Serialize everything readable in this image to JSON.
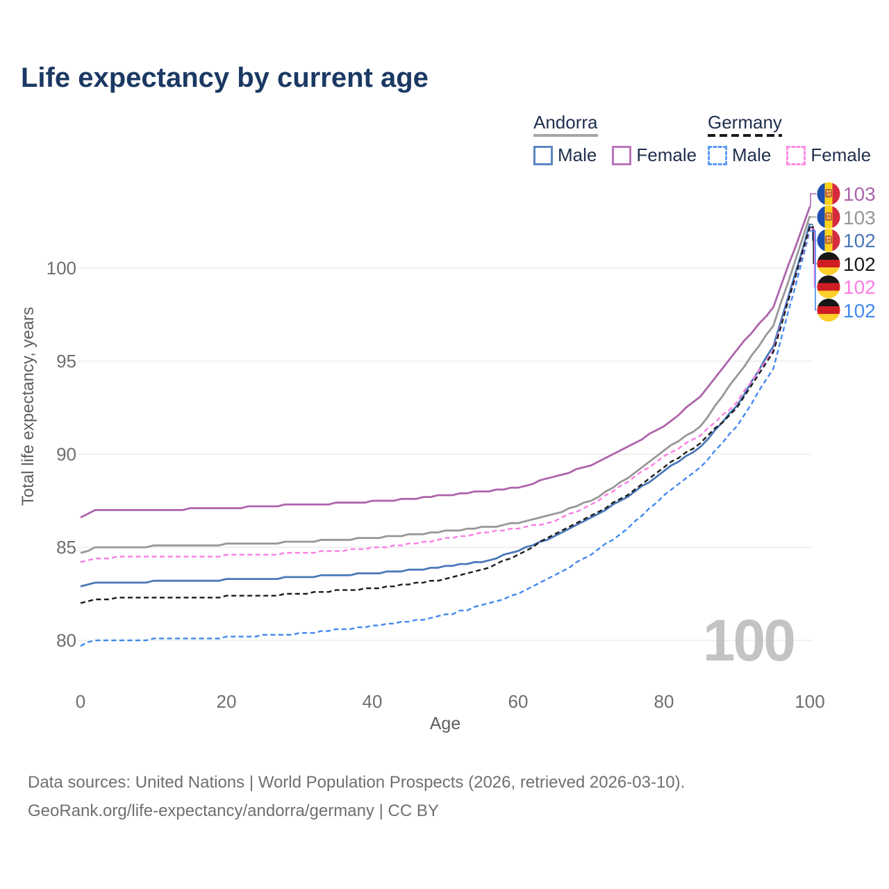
{
  "title": "Life expectancy by current age",
  "legend": {
    "groups": [
      {
        "country": "Andorra",
        "underline_style": "solid",
        "underline_color": "#a6a6a6",
        "items": [
          {
            "label": "Male",
            "color": "#5b86c4",
            "dashed": false
          },
          {
            "label": "Female",
            "color": "#bb74b8",
            "dashed": false
          }
        ]
      },
      {
        "country": "Germany",
        "underline_style": "dashed",
        "underline_color": "#1a1a1a",
        "items": [
          {
            "label": "Male",
            "color": "#5b9bf8",
            "dashed": true
          },
          {
            "label": "Female",
            "color": "#ff8ae2",
            "dashed": true
          }
        ]
      }
    ]
  },
  "chart_data": {
    "type": "line",
    "title": "Life expectancy by current age",
    "xlabel": "Age",
    "ylabel": "Total life expectancy, years",
    "x_ticks": [
      0,
      20,
      40,
      60,
      80,
      100
    ],
    "y_ticks": [
      80,
      85,
      90,
      95,
      100
    ],
    "xlim": [
      0,
      100
    ],
    "ylim": [
      78,
      104.5
    ],
    "grid": "horizontal-only",
    "ages": [
      0,
      2,
      5,
      10,
      15,
      20,
      25,
      30,
      35,
      40,
      45,
      50,
      55,
      60,
      65,
      70,
      75,
      80,
      85,
      90,
      95,
      100
    ],
    "series": [
      {
        "id": "ad_male",
        "name": "Andorra Male",
        "country": "Andorra",
        "sex": "Male",
        "color": "#4a78b8",
        "dash": "solid",
        "values": [
          82.9,
          83.1,
          83.1,
          83.15,
          83.2,
          83.25,
          83.3,
          83.4,
          83.5,
          83.6,
          83.75,
          83.95,
          84.2,
          84.8,
          85.6,
          86.6,
          87.7,
          89.1,
          90.4,
          92.6,
          95.8,
          102.35
        ]
      },
      {
        "id": "ad_total",
        "name": "Andorra Both sexes",
        "country": "Andorra",
        "sex": "Both",
        "color": "#979797",
        "dash": "solid",
        "values": [
          84.65,
          85.0,
          85.0,
          85.05,
          85.1,
          85.15,
          85.2,
          85.3,
          85.4,
          85.5,
          85.65,
          85.85,
          86.05,
          86.3,
          86.8,
          87.5,
          88.7,
          90.2,
          91.5,
          94.2,
          96.9,
          102.75
        ]
      },
      {
        "id": "ad_female",
        "name": "Andorra Female",
        "country": "Andorra",
        "sex": "Female",
        "color": "#ad64ab",
        "dash": "solid",
        "values": [
          86.6,
          86.95,
          87.0,
          87.0,
          87.05,
          87.1,
          87.2,
          87.3,
          87.35,
          87.45,
          87.6,
          87.8,
          88.0,
          88.2,
          88.8,
          89.4,
          90.4,
          91.5,
          93.1,
          95.6,
          97.9,
          103.3
        ]
      },
      {
        "id": "de_male",
        "name": "Germany Male",
        "country": "Germany",
        "sex": "Male",
        "color": "#4288f2",
        "dash": "dashed",
        "values": [
          79.7,
          80.0,
          80.0,
          80.05,
          80.1,
          80.15,
          80.25,
          80.35,
          80.55,
          80.75,
          81.0,
          81.35,
          81.85,
          82.5,
          83.5,
          84.6,
          86.0,
          87.8,
          89.3,
          91.5,
          94.6,
          102.0
        ]
      },
      {
        "id": "de_female",
        "name": "Germany Female",
        "country": "Germany",
        "sex": "Female",
        "color": "#fb7ce4",
        "dash": "dashed",
        "values": [
          84.2,
          84.4,
          84.45,
          84.5,
          84.5,
          84.55,
          84.6,
          84.7,
          84.8,
          84.95,
          85.15,
          85.45,
          85.75,
          86.0,
          86.4,
          87.3,
          88.5,
          89.9,
          91.0,
          92.8,
          95.6,
          102.1
        ]
      },
      {
        "id": "de_total",
        "name": "Germany Both sexes",
        "country": "Germany",
        "sex": "Both",
        "color": "#1b1b1b",
        "dash": "dashed",
        "values": [
          82.0,
          82.2,
          82.25,
          82.3,
          82.3,
          82.35,
          82.4,
          82.5,
          82.65,
          82.8,
          83.0,
          83.3,
          83.75,
          84.6,
          85.7,
          86.7,
          87.8,
          89.3,
          90.6,
          92.5,
          95.5,
          102.2
        ]
      }
    ],
    "end_labels": [
      {
        "series": "ad_female",
        "flag": "andorra",
        "value": "103",
        "color": "#ad64ab"
      },
      {
        "series": "ad_total",
        "flag": "andorra",
        "value": "103",
        "color": "#979797"
      },
      {
        "series": "ad_male",
        "flag": "andorra",
        "value": "102",
        "color": "#4a78b8"
      },
      {
        "series": "de_total",
        "flag": "germany",
        "value": "102",
        "color": "#1b1b1b"
      },
      {
        "series": "de_female",
        "flag": "germany",
        "value": "102",
        "color": "#fb7ce4"
      },
      {
        "series": "de_male",
        "flag": "germany",
        "value": "102",
        "color": "#4288f2"
      }
    ]
  },
  "watermark": "100",
  "flag_colors": {
    "andorra": [
      "#1f4fae",
      "#ffd21c",
      "#d52b3f"
    ],
    "germany": [
      "#171715",
      "#d01c24",
      "#fdcf2a"
    ]
  },
  "footer": {
    "line1": "Data sources: United Nations | World Population Prospects (2026, retrieved 2026-03-10).",
    "line2": "GeoRank.org/life-expectancy/andorra/germany | CC BY"
  }
}
